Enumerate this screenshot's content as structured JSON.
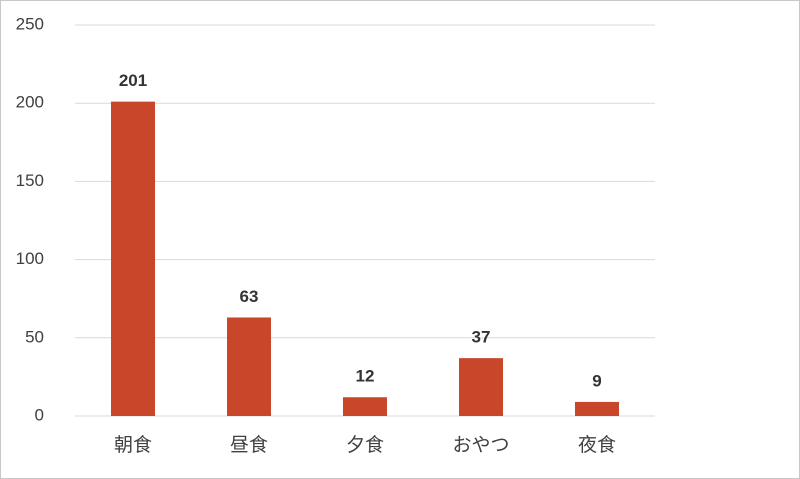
{
  "chart_data": {
    "type": "bar",
    "categories": [
      "朝食",
      "昼食",
      "夕食",
      "おやつ",
      "夜食"
    ],
    "values": [
      201,
      63,
      12,
      37,
      9
    ],
    "color": "#c8472b",
    "ylim": [
      0,
      250
    ],
    "yticks": [
      0,
      50,
      100,
      150,
      200,
      250
    ],
    "grid": true
  }
}
